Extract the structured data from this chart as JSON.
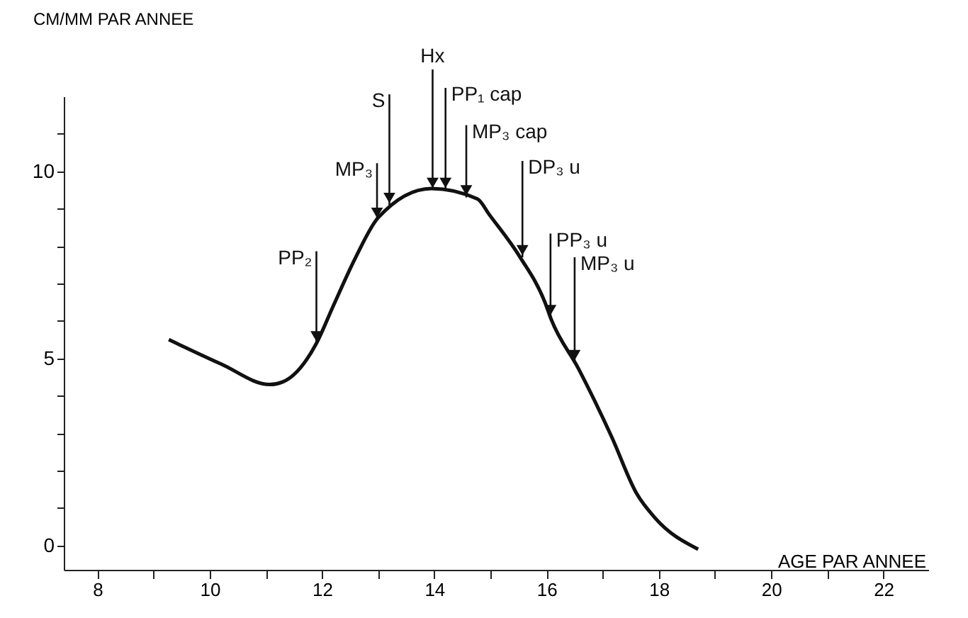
{
  "chart_data": {
    "type": "line",
    "ylabel": "CM/MM PAR ANNEE",
    "xlabel": "AGE PAR ANNEE",
    "x": [
      9.27,
      10.2,
      11.07,
      11.3,
      11.9,
      12.2,
      12.6,
      13.0,
      13.95,
      14.77,
      14.98,
      15.53,
      15.97,
      16.08,
      16.57,
      17.16,
      17.6,
      17.93,
      18.7
    ],
    "series": [
      {
        "color": "#111111",
        "values": [
          5.5,
          4.85,
          4.3,
          4.37,
          5.4,
          6.4,
          7.7,
          8.76,
          9.54,
          9.26,
          8.84,
          7.7,
          6.5,
          6.05,
          4.72,
          2.9,
          1.4,
          0.74,
          -0.1
        ]
      }
    ],
    "xlim": [
      7.4,
      22.8
    ],
    "ylim": [
      -0.65,
      12
    ],
    "xticks": [
      8,
      {
        "value": 9,
        "label": null
      },
      10,
      {
        "value": 11,
        "label": null
      },
      12,
      {
        "value": 13,
        "label": null
      },
      14,
      {
        "value": 15,
        "label": null
      },
      16,
      {
        "value": 17,
        "label": null
      },
      18,
      {
        "value": 19,
        "label": null
      },
      20,
      {
        "value": 21,
        "label": null
      },
      22
    ],
    "yticks": [
      0,
      {
        "value": 1,
        "label": null
      },
      {
        "value": 2,
        "label": null
      },
      {
        "value": 3,
        "label": null
      },
      {
        "value": 4,
        "label": null
      },
      5,
      {
        "value": 6,
        "label": null
      },
      {
        "value": 7,
        "label": null
      },
      {
        "value": 8,
        "label": null
      },
      {
        "value": 9,
        "label": null
      },
      10,
      {
        "value": 11,
        "label": null
      }
    ],
    "grid": false,
    "marker": "none",
    "line_style": "solid",
    "annotations": [
      {
        "text": "PP₂",
        "x": 11.9,
        "y": 5.4
      },
      {
        "text": "MP₃",
        "x": 12.98,
        "y": 8.7
      },
      {
        "text": "S",
        "x": 13.2,
        "y": 9.1
      },
      {
        "text": "Hx",
        "x": 13.97,
        "y": 9.5
      },
      {
        "text": "PP₁ cap",
        "x": 14.2,
        "y": 9.5
      },
      {
        "text": "MP₃ cap",
        "x": 14.57,
        "y": 9.3
      },
      {
        "text": "DP₃ u",
        "x": 15.57,
        "y": 7.7
      },
      {
        "text": "PP₃ u",
        "x": 16.07,
        "y": 6.1
      },
      {
        "text": "MP₃ u",
        "x": 16.5,
        "y": 4.9
      }
    ]
  }
}
